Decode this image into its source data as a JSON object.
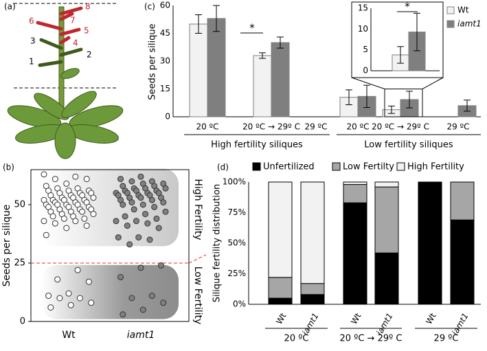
{
  "panel_a": {
    "label": "(a)",
    "branches": [
      "1",
      "2",
      "3",
      "4",
      "5",
      "6",
      "7",
      "8"
    ]
  },
  "chart_data": [
    {
      "type": "strip",
      "panel_label": "(b)",
      "y_label": "Seeds per silique",
      "categories": [
        "Wt",
        "iamt1"
      ],
      "series": [
        {
          "color": "#ffffff",
          "values": [
            63,
            62,
            61,
            61,
            59,
            58,
            57,
            57,
            56,
            56,
            56,
            55,
            55,
            55,
            54,
            54,
            54,
            53,
            53,
            53,
            52,
            52,
            52,
            52,
            51,
            51,
            51,
            50,
            50,
            50,
            50,
            49,
            49,
            49,
            48,
            48,
            48,
            47,
            47,
            47,
            46,
            46,
            45,
            45,
            44,
            44,
            43,
            43,
            42,
            41,
            40,
            37,
            22,
            18,
            17,
            12,
            11,
            10,
            10,
            8,
            7,
            6
          ]
        },
        {
          "color": "#808080",
          "values": [
            62,
            61,
            60,
            60,
            59,
            59,
            58,
            58,
            57,
            57,
            57,
            56,
            56,
            56,
            55,
            55,
            55,
            55,
            54,
            54,
            54,
            53,
            53,
            53,
            52,
            52,
            51,
            51,
            50,
            50,
            49,
            48,
            47,
            46,
            45,
            44,
            43,
            43,
            42,
            41,
            40,
            36,
            36,
            35,
            33,
            24,
            23,
            19,
            11,
            10,
            8,
            5,
            3
          ]
        }
      ],
      "threshold": 25,
      "threshold_color": "#e03030",
      "region_labels": [
        "High Fertility",
        "Low Fertility"
      ],
      "ylim": [
        0,
        65
      ],
      "yticks": [
        0,
        25,
        50
      ]
    },
    {
      "type": "bar",
      "panel_label": "(c)",
      "y_label": "Seeds per silique",
      "categories": [
        "20 ºC",
        "20 ºC → 29º C",
        "29 ºC",
        "20 ºC",
        "20 ºC → 29º C",
        "29 ºC"
      ],
      "group_labels": [
        "High fertility siliques",
        "Low fertility siliques"
      ],
      "series": [
        {
          "name": "Wt",
          "color": "#f2f2f2",
          "values": [
            50,
            33,
            null,
            10.5,
            3.8,
            null
          ],
          "errors": [
            5,
            1.5,
            null,
            4,
            2,
            null
          ]
        },
        {
          "name": "iamt1",
          "color": "#7f7f7f",
          "values": [
            53,
            40,
            null,
            11,
            9.3,
            6
          ],
          "errors": [
            7,
            3,
            null,
            6,
            4.5,
            3
          ]
        }
      ],
      "annotations": [
        "*",
        "*"
      ],
      "ylim": [
        0,
        60
      ],
      "yticks": [
        0,
        15,
        30,
        45,
        60
      ],
      "inset": {
        "ylim": [
          0,
          15
        ],
        "yticks": [
          0,
          5,
          10,
          15
        ]
      }
    },
    {
      "type": "stacked_bar",
      "panel_label": "(d)",
      "y_label": "Silique fertility distribution",
      "categories": [
        "Wt",
        "iamt1",
        "Wt",
        "iamt1",
        "Wt",
        "iamt1"
      ],
      "group_labels": [
        "20 ºC",
        "20 ºC → 29º C",
        "29 ºC"
      ],
      "series": [
        {
          "name": "Unfertilized",
          "color": "#000000",
          "values": [
            5,
            8,
            83,
            42,
            100,
            69
          ]
        },
        {
          "name": "Low Fertilty",
          "color": "#a6a6a6",
          "values": [
            17,
            9,
            15,
            54,
            0,
            31
          ]
        },
        {
          "name": "High Fertility",
          "color": "#f2f2f2",
          "values": [
            78,
            83,
            2,
            4,
            0,
            0
          ]
        }
      ],
      "ylim": [
        0,
        100
      ],
      "yticks": [
        {
          "value": 0,
          "label": "0%"
        },
        {
          "value": 25,
          "label": "25%"
        },
        {
          "value": 50,
          "label": "50%"
        },
        {
          "value": 75,
          "label": "75%"
        },
        {
          "value": 100,
          "label": "100%"
        }
      ]
    }
  ]
}
